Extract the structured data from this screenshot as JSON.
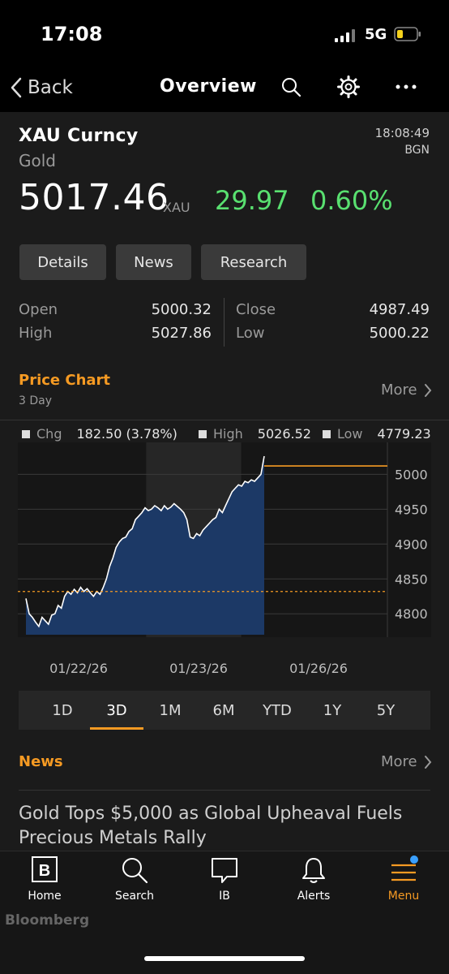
{
  "status_bar": {
    "time": "17:08",
    "network": "5G"
  },
  "nav": {
    "back_label": "Back",
    "title": "Overview"
  },
  "security": {
    "ticker": "XAU Curncy",
    "name": "Gold",
    "time": "18:08:49",
    "source": "BGN",
    "price": "5017.46",
    "unit": "XAU",
    "change": "29.97",
    "change_pct": "0.60%"
  },
  "tabs": [
    "Details",
    "News",
    "Research"
  ],
  "stats": {
    "open_label": "Open",
    "open": "5000.32",
    "high_label": "High",
    "high": "5027.86",
    "close_label": "Close",
    "close": "4987.49",
    "low_label": "Low",
    "low": "5000.22"
  },
  "price_chart": {
    "title": "Price Chart",
    "period_label": "3 Day",
    "more_label": "More",
    "chg_label": "Chg",
    "chg_value": "182.50 (3.78%)",
    "high_label": "High",
    "high_value": "5026.52",
    "low_label": "Low",
    "low_value": "4779.23"
  },
  "chart_data": {
    "type": "area",
    "x_ticks": [
      "01/22/26",
      "01/23/26",
      "01/26/26"
    ],
    "y_ticks": [
      5000,
      4950,
      4900,
      4850,
      4800
    ],
    "ylim": [
      4770,
      5040
    ],
    "prev_close": 4832,
    "last": 5012,
    "series": [
      {
        "values": [
          4822,
          4800,
          4795,
          4788,
          4782,
          4795,
          4790,
          4785,
          4798,
          4800,
          4812,
          4808,
          4825,
          4832,
          4828,
          4835,
          4830,
          4838,
          4832,
          4836,
          4830,
          4825,
          4832,
          4828,
          4838,
          4850,
          4868,
          4880,
          4895,
          4903,
          4908,
          4910,
          4918,
          4922,
          4935,
          4940,
          4945,
          4952,
          4948,
          4950,
          4955,
          4952,
          4948,
          4955,
          4950,
          4953,
          4958,
          4954,
          4950,
          4945,
          4935,
          4910,
          4908,
          4915,
          4912,
          4920,
          4925,
          4930,
          4935,
          4938,
          4950,
          4945,
          4955,
          4965,
          4975,
          4980,
          4985,
          4983,
          4990,
          4988,
          4992,
          4990,
          4995,
          5000,
          5026
        ]
      }
    ],
    "volume_start_frac": 0.0,
    "highlight_range": [
      0.34,
      0.6
    ]
  },
  "periods": [
    "1D",
    "3D",
    "1M",
    "6M",
    "YTD",
    "1Y",
    "5Y"
  ],
  "active_period": "3D",
  "news": {
    "title": "News",
    "more_label": "More",
    "headline": "Gold Tops $5,000 as Global Upheaval Fuels Precious Metals Rally"
  },
  "tabbar": [
    {
      "label": "Home",
      "icon": "bloomberg-b-icon"
    },
    {
      "label": "Search",
      "icon": "search-icon"
    },
    {
      "label": "IB",
      "icon": "chat-bubble-icon"
    },
    {
      "label": "Alerts",
      "icon": "bell-icon"
    },
    {
      "label": "Menu",
      "icon": "menu-icon"
    }
  ],
  "brand": "Bloomberg",
  "colors": {
    "accent": "#f59a23",
    "up": "#59e070",
    "area": "#1c3966"
  }
}
